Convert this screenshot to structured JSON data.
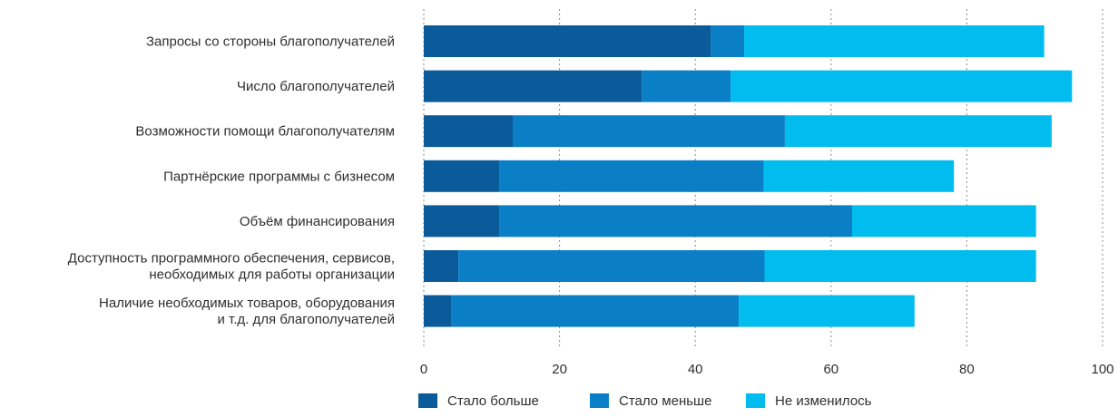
{
  "chart_data": {
    "type": "bar",
    "orientation": "horizontal",
    "stacked": true,
    "categories": [
      [
        "Запросы со стороны благополучателей"
      ],
      [
        "Число благополучателей"
      ],
      [
        "Возможности помощи благополучателям"
      ],
      [
        "Партнёрские программы с бизнесом"
      ],
      [
        "Объём финансирования"
      ],
      [
        "Доступность программного обеспечения, сервисов,",
        "необходимых для работы организации"
      ],
      [
        "Наличие необходимых товаров, оборудования",
        "и т.д. для благополучателей"
      ]
    ],
    "series": [
      {
        "name": "Стало больше",
        "color": "#0b5a99",
        "values": [
          42.3,
          32.1,
          13.1,
          11.1,
          11.1,
          5.1,
          4.1
        ]
      },
      {
        "name": "Стало меньше",
        "color": "#0a7fc6",
        "values": [
          4.9,
          13.1,
          40.1,
          39.0,
          52.0,
          45.1,
          42.3
        ]
      },
      {
        "name": "Не изменилось",
        "color": "#00bcef",
        "values": [
          44.2,
          50.3,
          39.3,
          28.0,
          27.1,
          40.0,
          25.9
        ]
      }
    ],
    "xlim": [
      0,
      100
    ],
    "xticks": [
      0,
      20,
      40,
      60,
      80,
      100
    ],
    "grid": "vertical-dotted",
    "legend": "bottom"
  }
}
